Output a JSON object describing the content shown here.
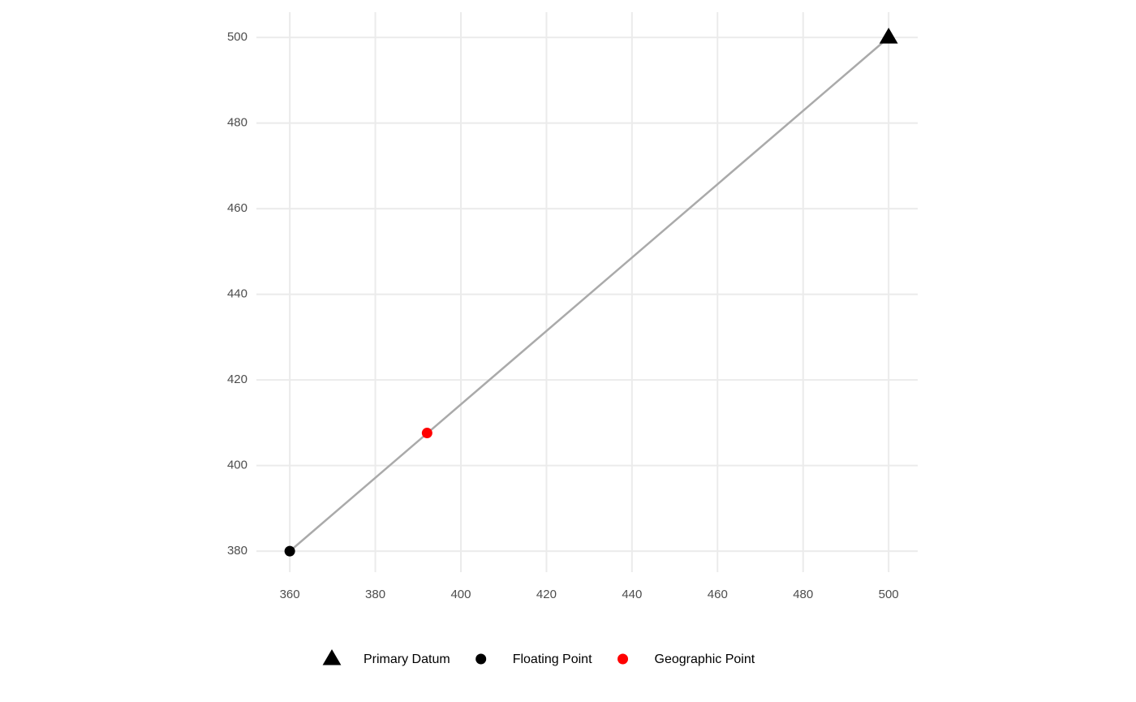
{
  "chart_data": {
    "type": "scatter",
    "series": [
      {
        "color": "#aaaaaa",
        "mode": "line",
        "x": [
          360,
          500
        ],
        "values": [
          380,
          500
        ]
      },
      {
        "name": "Primary Datum",
        "color": "#000000",
        "marker": "triangle",
        "x": [
          500
        ],
        "values": [
          500
        ]
      },
      {
        "name": "Floating Point",
        "color": "#000000",
        "marker": "circle",
        "x": [
          360
        ],
        "values": [
          380
        ]
      },
      {
        "name": "Geographic Point",
        "color": "#ff0000",
        "marker": "circle",
        "x": [
          392.1
        ],
        "values": [
          407.6
        ]
      }
    ],
    "xlim": [
      352.2,
      506.8
    ],
    "ylim": [
      375.1,
      505.9
    ],
    "xticks": [
      360,
      380,
      400,
      420,
      440,
      460,
      480,
      500
    ],
    "yticks": [
      380,
      400,
      420,
      440,
      460,
      480,
      500
    ],
    "grid": true,
    "legend": "bottom"
  }
}
